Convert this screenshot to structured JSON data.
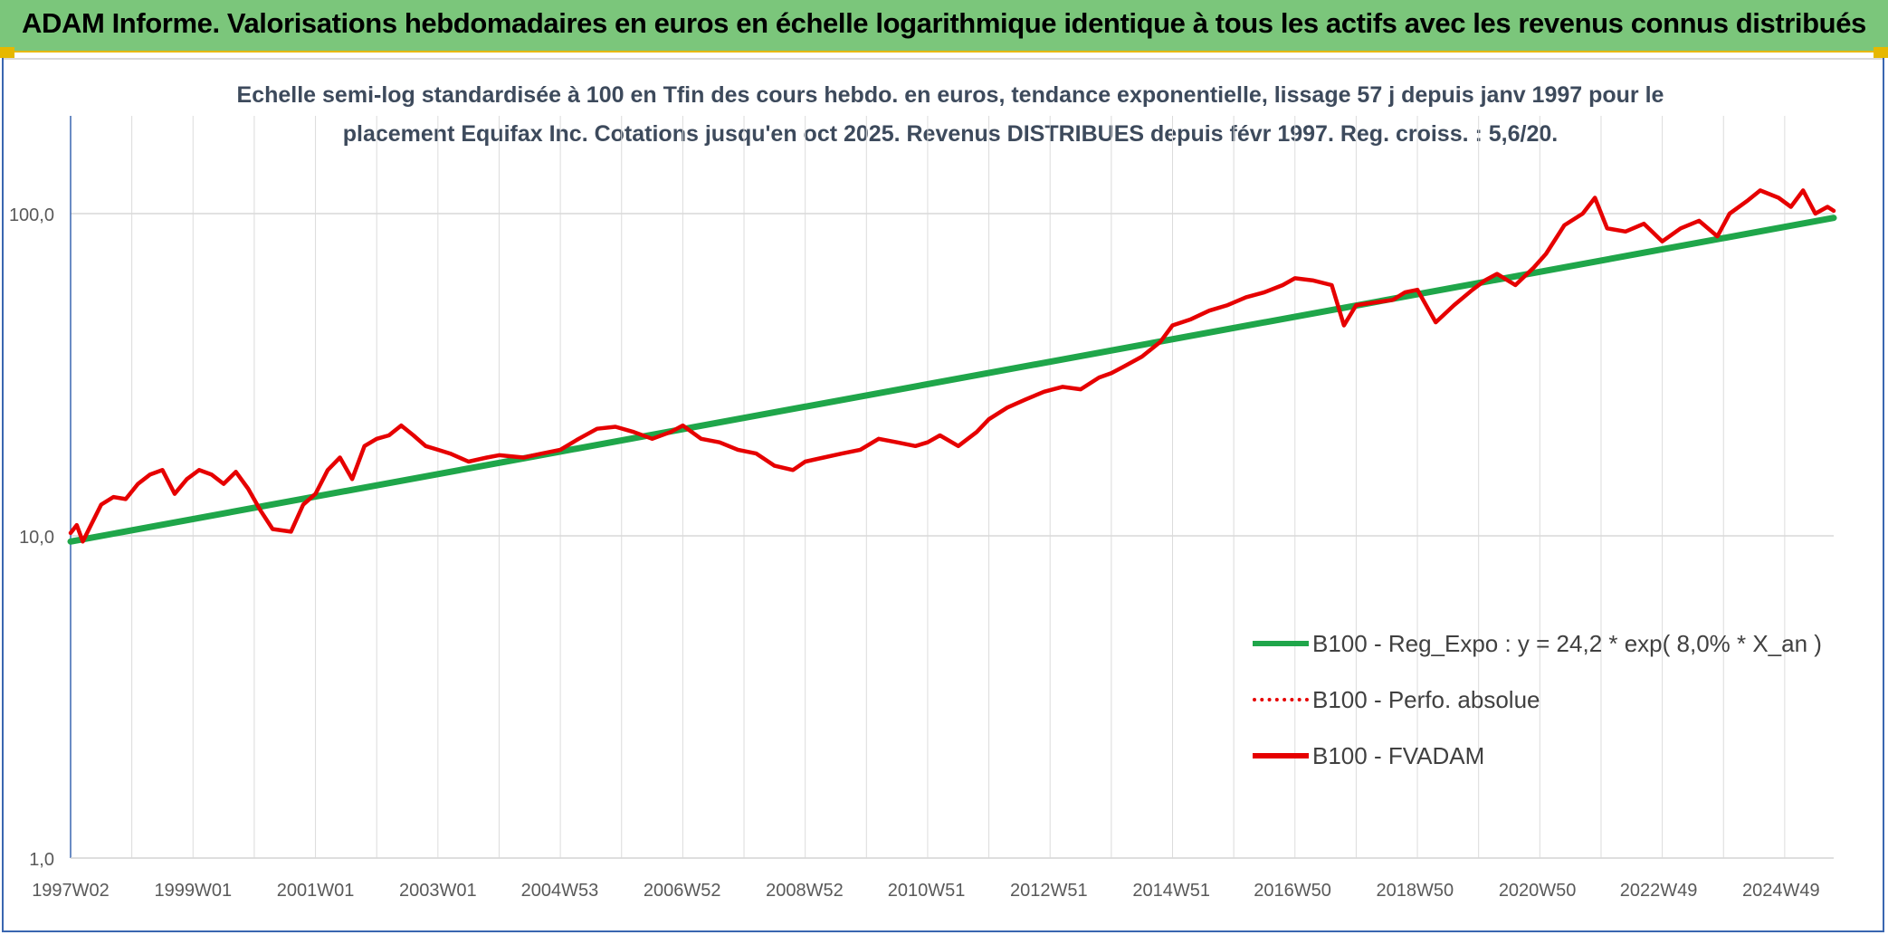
{
  "banner": {
    "title": "ADAM Informe. Valorisations hebdomadaires en euros en échelle logarithmique identique à tous les actifs avec les revenus connus distribués",
    "background": "#7bc67b",
    "accent": "#e6b800"
  },
  "chart_data": {
    "type": "line",
    "title_line1": "Echelle semi-log standardisée à 100 en Tfin des cours hebdo. en euros, tendance exponentielle, lissage 57 j depuis janv 1997 pour le",
    "title_line2": "placement Equifax Inc. Cotations jusqu'en oct 2025. Revenus DISTRIBUES depuis févr 1997. Reg. croiss. : 5,6/20.",
    "y_scale": "log",
    "ylim": [
      1,
      200
    ],
    "xlim": [
      1997.0,
      2025.8
    ],
    "grid": true,
    "legend_position": "right",
    "y_ticks": [
      {
        "value": 1,
        "label": "1,0"
      },
      {
        "value": 10,
        "label": "10,0"
      },
      {
        "value": 100,
        "label": "100,0"
      }
    ],
    "x_ticks": [
      {
        "value": 1997.0,
        "label": "1997W02"
      },
      {
        "value": 1999.0,
        "label": "1999W01"
      },
      {
        "value": 2001.0,
        "label": "2001W01"
      },
      {
        "value": 2003.0,
        "label": "2003W01"
      },
      {
        "value": 2004.99,
        "label": "2004W53"
      },
      {
        "value": 2006.99,
        "label": "2006W52"
      },
      {
        "value": 2008.99,
        "label": "2008W52"
      },
      {
        "value": 2010.98,
        "label": "2010W51"
      },
      {
        "value": 2012.98,
        "label": "2012W51"
      },
      {
        "value": 2014.98,
        "label": "2014W51"
      },
      {
        "value": 2016.96,
        "label": "2016W50"
      },
      {
        "value": 2018.96,
        "label": "2018W50"
      },
      {
        "value": 2020.96,
        "label": "2020W50"
      },
      {
        "value": 2022.94,
        "label": "2022W49"
      },
      {
        "value": 2024.94,
        "label": "2024W49"
      }
    ],
    "series": [
      {
        "name": "B100 - Reg_Expo : y = 24,2 * exp( 8,0% *  X_an )",
        "color": "#1fa64a",
        "style": "solid",
        "x": [
          1997.0,
          2025.8
        ],
        "y": [
          9.6,
          97
        ]
      },
      {
        "name": "B100 - Perfo. absolue",
        "color": "#e60000",
        "style": "dotted",
        "x": [],
        "y": []
      },
      {
        "name": "B100 - FVADAM",
        "color": "#e60000",
        "style": "solid",
        "x": [
          1997.0,
          1997.1,
          1997.2,
          1997.3,
          1997.5,
          1997.7,
          1997.9,
          1998.1,
          1998.3,
          1998.5,
          1998.7,
          1998.9,
          1999.1,
          1999.3,
          1999.5,
          1999.7,
          1999.9,
          2000.1,
          2000.3,
          2000.6,
          2000.8,
          2001.0,
          2001.2,
          2001.4,
          2001.6,
          2001.8,
          2002.0,
          2002.2,
          2002.4,
          2002.6,
          2002.8,
          2003.0,
          2003.2,
          2003.5,
          2003.8,
          2004.0,
          2004.4,
          2004.7,
          2005.0,
          2005.3,
          2005.6,
          2005.9,
          2006.2,
          2006.5,
          2006.8,
          2007.0,
          2007.3,
          2007.6,
          2007.9,
          2008.2,
          2008.5,
          2008.8,
          2009.0,
          2009.3,
          2009.6,
          2009.9,
          2010.2,
          2010.5,
          2010.8,
          2011.0,
          2011.2,
          2011.5,
          2011.8,
          2012.0,
          2012.3,
          2012.6,
          2012.9,
          2013.2,
          2013.5,
          2013.8,
          2014.0,
          2014.2,
          2014.5,
          2014.8,
          2015.0,
          2015.3,
          2015.6,
          2015.9,
          2016.2,
          2016.5,
          2016.8,
          2017.0,
          2017.3,
          2017.6,
          2017.8,
          2018.0,
          2018.3,
          2018.6,
          2018.8,
          2019.0,
          2019.3,
          2019.6,
          2019.9,
          2020.1,
          2020.3,
          2020.6,
          2020.9,
          2021.1,
          2021.4,
          2021.7,
          2021.9,
          2022.1,
          2022.4,
          2022.7,
          2023.0,
          2023.3,
          2023.6,
          2023.9,
          2024.1,
          2024.4,
          2024.6,
          2024.9,
          2025.1,
          2025.3,
          2025.5,
          2025.7,
          2025.8
        ],
        "y": [
          10.2,
          10.8,
          9.6,
          10.5,
          12.5,
          13.2,
          13.0,
          14.5,
          15.5,
          16.0,
          13.5,
          15.0,
          16.0,
          15.5,
          14.5,
          15.8,
          14.0,
          12.0,
          10.5,
          10.3,
          12.5,
          13.5,
          16.0,
          17.5,
          15.0,
          19.0,
          20.0,
          20.5,
          22.0,
          20.5,
          19.0,
          18.5,
          18.0,
          17.0,
          17.5,
          17.8,
          17.5,
          18.0,
          18.5,
          20.0,
          21.5,
          21.8,
          21.0,
          20.0,
          21.0,
          22.0,
          20.0,
          19.5,
          18.5,
          18.0,
          16.5,
          16.0,
          17.0,
          17.5,
          18.0,
          18.5,
          20.0,
          19.5,
          19.0,
          19.5,
          20.5,
          19.0,
          21.0,
          23.0,
          25.0,
          26.5,
          28.0,
          29.0,
          28.5,
          31.0,
          32.0,
          33.5,
          36.0,
          40.0,
          45.0,
          47.0,
          50.0,
          52.0,
          55.0,
          57.0,
          60.0,
          63.0,
          62.0,
          60.0,
          45.0,
          52.0,
          53.0,
          54.0,
          57.0,
          58.0,
          46.0,
          52.0,
          58.0,
          62.0,
          65.0,
          60.0,
          68.0,
          75.0,
          92.0,
          100.0,
          112.0,
          90.0,
          88.0,
          93.0,
          82.0,
          90.0,
          95.0,
          85.0,
          100.0,
          110.0,
          118.0,
          112.0,
          105.0,
          118.0,
          100.0,
          105.0,
          102.0
        ]
      }
    ]
  }
}
